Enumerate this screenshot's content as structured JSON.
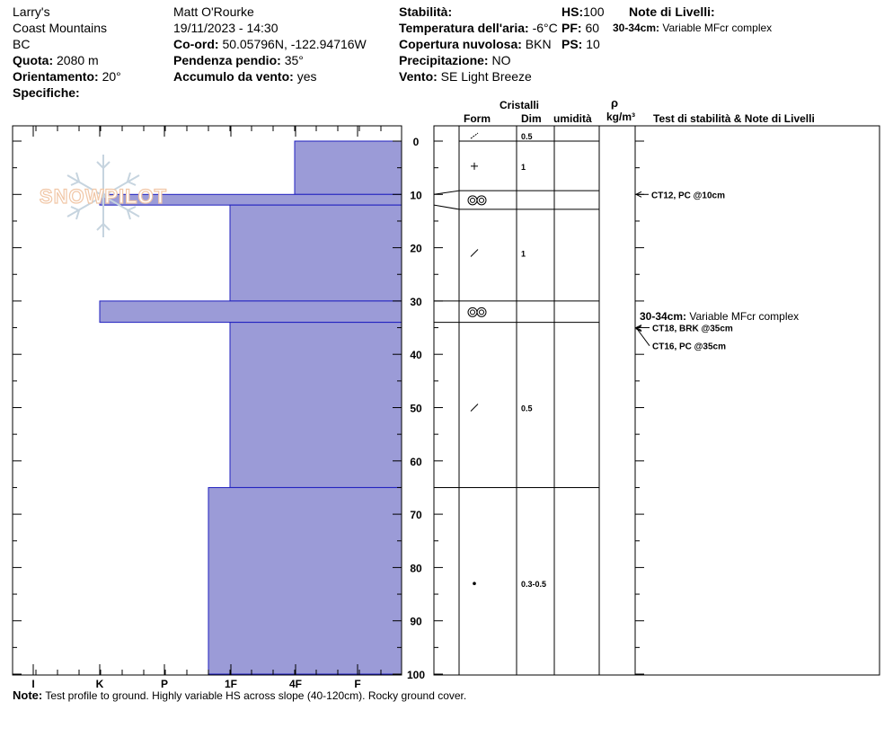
{
  "header": {
    "location": "Larry's",
    "range": "Coast Mountains",
    "state": "BC",
    "elevation_label": "Quota:",
    "elevation_value": "2080 m",
    "aspect_label": "Orientamento:",
    "aspect_value": "20°",
    "specifics_label": "Specifiche:",
    "observer": "Matt O'Rourke",
    "datetime": "19/11/2023 - 14:30",
    "coord_label": "Co-ord:",
    "coord_value": "50.05796N, -122.94716W",
    "slope_label": "Pendenza pendio:",
    "slope_value": "35°",
    "wind_loading_label": "Accumulo da vento:",
    "wind_loading_value": "yes",
    "stability_label": "Stabilità:",
    "air_temp_label": "Temperatura dell'aria:",
    "air_temp_value": "-6°C",
    "cloud_label": "Copertura nuvolosa:",
    "cloud_value": "BKN",
    "precip_label": "Precipitazione:",
    "precip_value": "NO",
    "wind_label": "Vento:",
    "wind_value": "SE  Light Breeze",
    "hs_label": "HS:",
    "hs_value": "100",
    "pf_label": "PF:",
    "pf_value": "60",
    "ps_label": "PS:",
    "ps_value": "10",
    "layer_notes_label": "Note di Livelli:",
    "layer_notes_range": "30-34cm:",
    "layer_notes_text": "Variable MFcr complex"
  },
  "columns": {
    "crystals": "Cristalli",
    "form": "Form",
    "size": "Dim",
    "moisture": "umidità",
    "rho": "ρ",
    "density_unit": "kg/m³",
    "stability_notes": "Test di stabilità & Note di Livelli"
  },
  "logo_text": "SNOWPILOT",
  "footer": {
    "note_label": "Note:",
    "note_text": "Test profile to ground. Highly variable HS across slope (40-120cm). Rocky ground cover."
  },
  "chart_data": {
    "type": "bar",
    "orientation": "horizontal",
    "depth_ticks": [
      "0",
      "10",
      "20",
      "30",
      "40",
      "50",
      "60",
      "70",
      "80",
      "90",
      "100"
    ],
    "ylim": [
      0,
      100
    ],
    "hardness_ticks": [
      "I",
      "K",
      "P",
      "1F",
      "4F",
      "F"
    ],
    "hardness_scale": {
      "F": 0,
      "4F": 1,
      "1F": 2,
      "P": 3,
      "K": 4,
      "I": 5
    },
    "colors": {
      "fill": "#9b9bd7",
      "edge": "#1f1fbf"
    },
    "hardness_layers": [
      {
        "top": 0,
        "bottom": 10,
        "hardness": "4F"
      },
      {
        "top": 10,
        "bottom": 12,
        "hardness": "K"
      },
      {
        "top": 12,
        "bottom": 30,
        "hardness": "1F"
      },
      {
        "top": 30,
        "bottom": 34,
        "hardness": "K"
      },
      {
        "top": 34,
        "bottom": 65,
        "hardness": "1F"
      },
      {
        "top": 65,
        "bottom": 100,
        "hardness": "1F-"
      }
    ],
    "grain_layers": [
      {
        "top": 0,
        "bottom": 12,
        "form_icon": "decomposing-fragments",
        "size": "0.5"
      },
      {
        "top": 12,
        "bottom": 30,
        "form_icon": "precipitation-particles",
        "size": "1"
      },
      {
        "top": 30,
        "bottom": 34,
        "form_icon": "melt-freeze",
        "size": ""
      },
      {
        "top": 34,
        "bottom": 65,
        "form_icon": "decomposing-fragments",
        "size": "1"
      },
      {
        "top": 65,
        "bottom": 100,
        "form_icon": "rounded-grains",
        "size": "0.5"
      }
    ],
    "size_labels": [
      {
        "depth": 0,
        "text": "0.5"
      },
      {
        "depth": 5,
        "text": "1"
      },
      {
        "depth": 21,
        "text": "1"
      },
      {
        "depth": 50,
        "text": "0.5"
      },
      {
        "depth": 83,
        "text": "0.3-0.5"
      }
    ],
    "stability_tests": [
      {
        "depth": 10,
        "text": "CT12, PC @10cm"
      },
      {
        "depth": 35,
        "text": "CT18, BRK @35cm"
      },
      {
        "depth": 35,
        "text": "CT16, PC @35cm"
      }
    ],
    "layer_notes": [
      {
        "depth": 30,
        "range": "30-34cm:",
        "text": "Variable MFcr complex"
      }
    ]
  }
}
